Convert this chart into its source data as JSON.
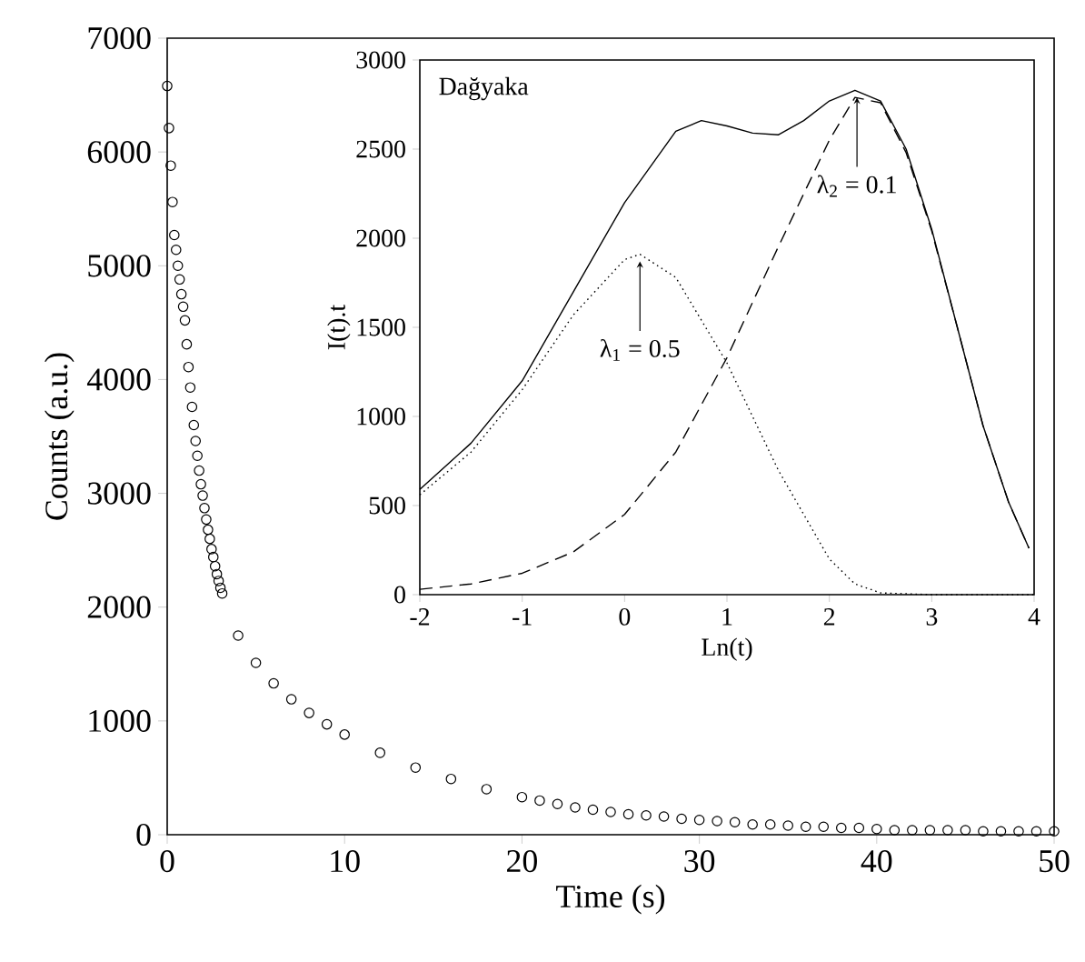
{
  "chart_data": [
    {
      "type": "scatter",
      "xlabel": "Time (s)",
      "ylabel": "Counts (a.u.)",
      "xlim": [
        0,
        50
      ],
      "ylim": [
        0,
        7000
      ],
      "xticks": [
        0,
        10,
        20,
        30,
        40,
        50
      ],
      "yticks": [
        0,
        1000,
        2000,
        3000,
        4000,
        5000,
        6000,
        7000
      ],
      "marker": "circle",
      "series": [
        {
          "color": "#000000",
          "x": [
            0,
            0.1,
            0.2,
            0.3,
            0.4,
            0.5,
            0.6,
            0.7,
            0.8,
            0.9,
            1.0,
            1.1,
            1.2,
            1.3,
            1.4,
            1.5,
            1.6,
            1.7,
            1.8,
            1.9,
            2.0,
            2.1,
            2.2,
            2.3,
            2.4,
            2.5,
            2.6,
            2.7,
            2.8,
            2.9,
            3.0,
            3.1,
            4,
            5,
            6,
            7,
            8,
            9,
            10,
            12,
            14,
            16,
            18,
            20,
            21,
            22,
            23,
            24,
            25,
            26,
            27,
            28,
            29,
            30,
            31,
            32,
            33,
            34,
            35,
            36,
            37,
            38,
            39,
            40,
            41,
            42,
            43,
            44,
            45,
            46,
            47,
            48,
            49,
            50
          ],
          "values": [
            6580,
            6210,
            5880,
            5560,
            5270,
            5140,
            5000,
            4880,
            4750,
            4640,
            4520,
            4310,
            4110,
            3930,
            3760,
            3600,
            3460,
            3330,
            3200,
            3080,
            2980,
            2870,
            2770,
            2680,
            2600,
            2510,
            2440,
            2360,
            2290,
            2230,
            2170,
            2120,
            1750,
            1510,
            1330,
            1190,
            1070,
            970,
            880,
            720,
            590,
            490,
            400,
            330,
            300,
            270,
            240,
            220,
            200,
            180,
            170,
            160,
            140,
            130,
            120,
            110,
            90,
            90,
            80,
            70,
            70,
            60,
            60,
            50,
            40,
            40,
            40,
            40,
            40,
            30,
            30,
            30,
            30,
            30
          ]
        }
      ]
    },
    {
      "type": "line",
      "xlabel": "Ln(t)",
      "ylabel": "I(t).t",
      "xlim": [
        -2,
        4
      ],
      "ylim": [
        0,
        3000
      ],
      "xticks": [
        -2,
        -1,
        0,
        1,
        2,
        3,
        4
      ],
      "yticks": [
        0,
        500,
        1000,
        1500,
        2000,
        2500,
        3000
      ],
      "marker": "none",
      "annotations": [
        "Dağyaka",
        {
          "text": "λ$_{1}$ = 0.5",
          "x": 0.15,
          "y": 1900
        },
        {
          "text": "λ$_{2}$ = 0.1",
          "x": 2.27,
          "y": 2820
        }
      ],
      "series": [
        {
          "color": "#000000",
          "line_style": "solid",
          "x": [
            -2,
            -1.5,
            -1,
            -0.5,
            0,
            0.5,
            0.75,
            1,
            1.25,
            1.5,
            1.75,
            2,
            2.25,
            2.5,
            2.75,
            3,
            3.25,
            3.5,
            3.75,
            3.95
          ],
          "values": [
            590,
            850,
            1200,
            1700,
            2200,
            2600,
            2660,
            2630,
            2590,
            2580,
            2660,
            2770,
            2830,
            2770,
            2500,
            2050,
            1500,
            950,
            520,
            260
          ]
        },
        {
          "color": "#000000",
          "line_style": "dotted",
          "x": [
            -2,
            -1.5,
            -1,
            -0.5,
            0,
            0.15,
            0.5,
            1,
            1.5,
            2,
            2.25,
            2.5,
            3,
            3.5,
            4
          ],
          "values": [
            560,
            800,
            1150,
            1570,
            1880,
            1910,
            1780,
            1300,
            700,
            200,
            60,
            10,
            0,
            0,
            0
          ]
        },
        {
          "color": "#000000",
          "line_style": "dashed",
          "x": [
            -2,
            -1.5,
            -1,
            -0.5,
            0,
            0.5,
            1,
            1.5,
            2,
            2.25,
            2.5,
            2.75,
            3,
            3.25,
            3.5,
            3.75,
            3.95
          ],
          "values": [
            30,
            60,
            120,
            240,
            450,
            800,
            1330,
            1950,
            2550,
            2790,
            2760,
            2480,
            2040,
            1500,
            950,
            520,
            260
          ]
        }
      ]
    }
  ]
}
